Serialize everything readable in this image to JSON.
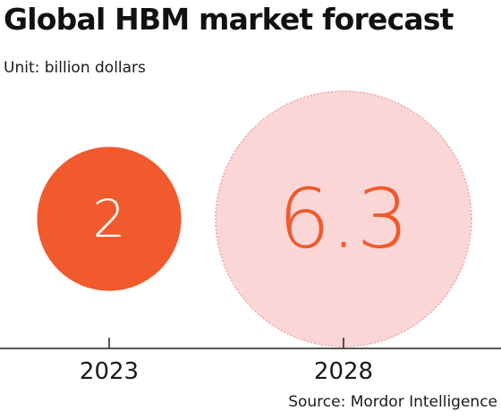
{
  "header": {
    "title": "Global HBM market forecast",
    "unit": "Unit: billion dollars"
  },
  "footer": {
    "source": "Source: Mordor Intelligence"
  },
  "colors": {
    "bubble_2023_fill": "#f05a2c",
    "bubble_2023_text": "#ffffff",
    "bubble_2028_fill": "#fbd6d6",
    "bubble_2028_border": "#f2a3a3",
    "bubble_2028_text": "#f05a2c",
    "axis": "#222222"
  },
  "chart_data": {
    "type": "bubble",
    "title": "Global HBM market forecast",
    "unit": "billion dollars",
    "categories": [
      "2023",
      "2028"
    ],
    "values": [
      2,
      6.3
    ],
    "value_labels": [
      "2",
      "6.3"
    ],
    "grid": false,
    "legend": "none"
  }
}
